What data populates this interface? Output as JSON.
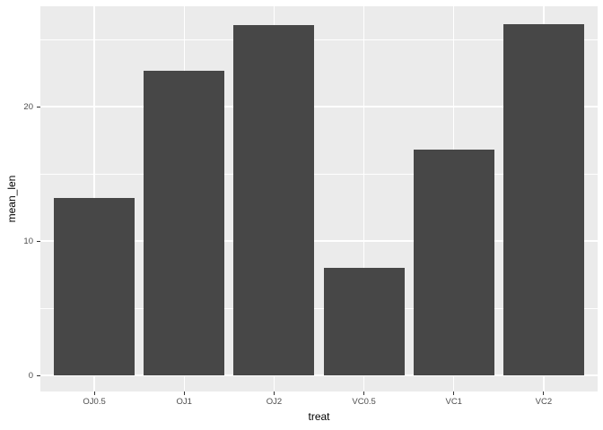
{
  "chart_data": {
    "type": "bar",
    "title": "",
    "xlabel": "treat",
    "ylabel": "mean_len",
    "categories": [
      "OJ0.5",
      "OJ1",
      "OJ2",
      "VC0.5",
      "VC1",
      "VC2"
    ],
    "values": [
      13.23,
      22.7,
      26.06,
      7.98,
      16.77,
      26.14
    ],
    "y_major_ticks": [
      0,
      10,
      20
    ],
    "y_minor_ticks": [
      5,
      15,
      25
    ],
    "ylim": [
      -1.2,
      27.47
    ],
    "bar_width_fraction": 0.9,
    "grid": "on",
    "legend": "none",
    "colors": {
      "bar_fill": "#474747",
      "panel_background": "#EBEBEB",
      "gridline": "#FFFFFF",
      "tick_mark": "#333333",
      "tick_label": "#4D4D4D",
      "axis_title": "#000000",
      "figure_background": "#FFFFFF"
    }
  }
}
